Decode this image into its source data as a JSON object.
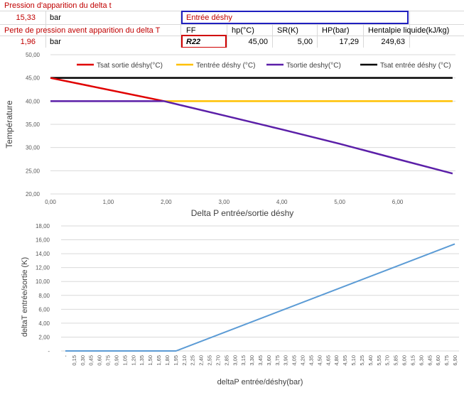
{
  "sheet": {
    "row1_label": "Pression d'apparition du delta t",
    "row2_value": "15,33",
    "row2_unit": "bar",
    "entree_deshy": "Entrée déshy",
    "row3_label": "Perte de pression avent apparition du delta T",
    "ff_label": "FF",
    "hp_label": "hp(°C)",
    "sr_label": "SR(K)",
    "hpbar_label": "HP(bar)",
    "hent_label": "Hentalpie liquide(kJ/kg)",
    "row4_value": "1,96",
    "row4_unit": "bar",
    "ff_value": "R22",
    "hp_value": "45,00",
    "sr_value": "5,00",
    "hpbar_value": "17,29",
    "hent_value": "249,63"
  },
  "colors": {
    "red": "#e00000",
    "orange": "#ffc000",
    "purple": "#5b1fa8",
    "black": "#000000",
    "blue": "#5b9bd5",
    "box_blue": "#1f1fbf",
    "box_red": "#d00000"
  },
  "chart_data": [
    {
      "type": "line",
      "xlabel": "Delta P entrée/sortie déshy",
      "ylabel": "Température",
      "xlim": [
        0,
        7
      ],
      "ylim": [
        20,
        50
      ],
      "xticks": [
        "0,00",
        "1,00",
        "2,00",
        "3,00",
        "4,00",
        "5,00",
        "6,00"
      ],
      "yticks": [
        "20,00",
        "25,00",
        "30,00",
        "35,00",
        "40,00",
        "45,00",
        "50,00"
      ],
      "legend_position": "top",
      "series": [
        {
          "name": "Tsat sortie déshy(°C)",
          "color": "#e00000",
          "x": [
            0,
            1.96
          ],
          "y": [
            45,
            40
          ]
        },
        {
          "name": "Tentrée déshy (°C)",
          "color": "#ffc000",
          "x": [
            1.96,
            6.95
          ],
          "y": [
            40,
            40
          ]
        },
        {
          "name": "Tsortie deshy(°C)",
          "color": "#5b1fa8",
          "x": [
            0,
            1.96,
            3,
            4,
            5,
            6,
            6.95
          ],
          "y": [
            40,
            40,
            36.9,
            33.9,
            30.8,
            27.5,
            24.4
          ]
        },
        {
          "name": "Tsat entrée déshy (°C)",
          "color": "#000000",
          "x": [
            0,
            6.95
          ],
          "y": [
            45,
            45
          ]
        }
      ]
    },
    {
      "type": "line",
      "xlabel": "deltaP entrée/déshy(bar)",
      "ylabel": "deltaT entrée/sortie (K)",
      "ylim": [
        0,
        18
      ],
      "yticks": [
        "-",
        "2,00",
        "4,00",
        "6,00",
        "8,00",
        "10,00",
        "12,00",
        "14,00",
        "16,00",
        "18,00"
      ],
      "categories": [
        "-",
        "0,15",
        "0,30",
        "0,45",
        "0,60",
        "0,75",
        "0,90",
        "1,05",
        "1,20",
        "1,35",
        "1,50",
        "1,65",
        "1,80",
        "1,95",
        "2,10",
        "2,25",
        "2,40",
        "2,55",
        "2,70",
        "2,85",
        "3,00",
        "3,15",
        "3,30",
        "3,45",
        "3,60",
        "3,75",
        "3,90",
        "4,05",
        "4,20",
        "4,35",
        "4,50",
        "4,65",
        "4,80",
        "4,95",
        "5,10",
        "5,25",
        "5,40",
        "5,55",
        "5,70",
        "5,85",
        "6,00",
        "6,15",
        "6,30",
        "6,45",
        "6,60",
        "6,75",
        "6,90"
      ],
      "series": [
        {
          "color": "#5b9bd5",
          "x": [
            0,
            1.96,
            6.9
          ],
          "y": [
            0,
            0,
            15.4
          ]
        }
      ]
    }
  ]
}
